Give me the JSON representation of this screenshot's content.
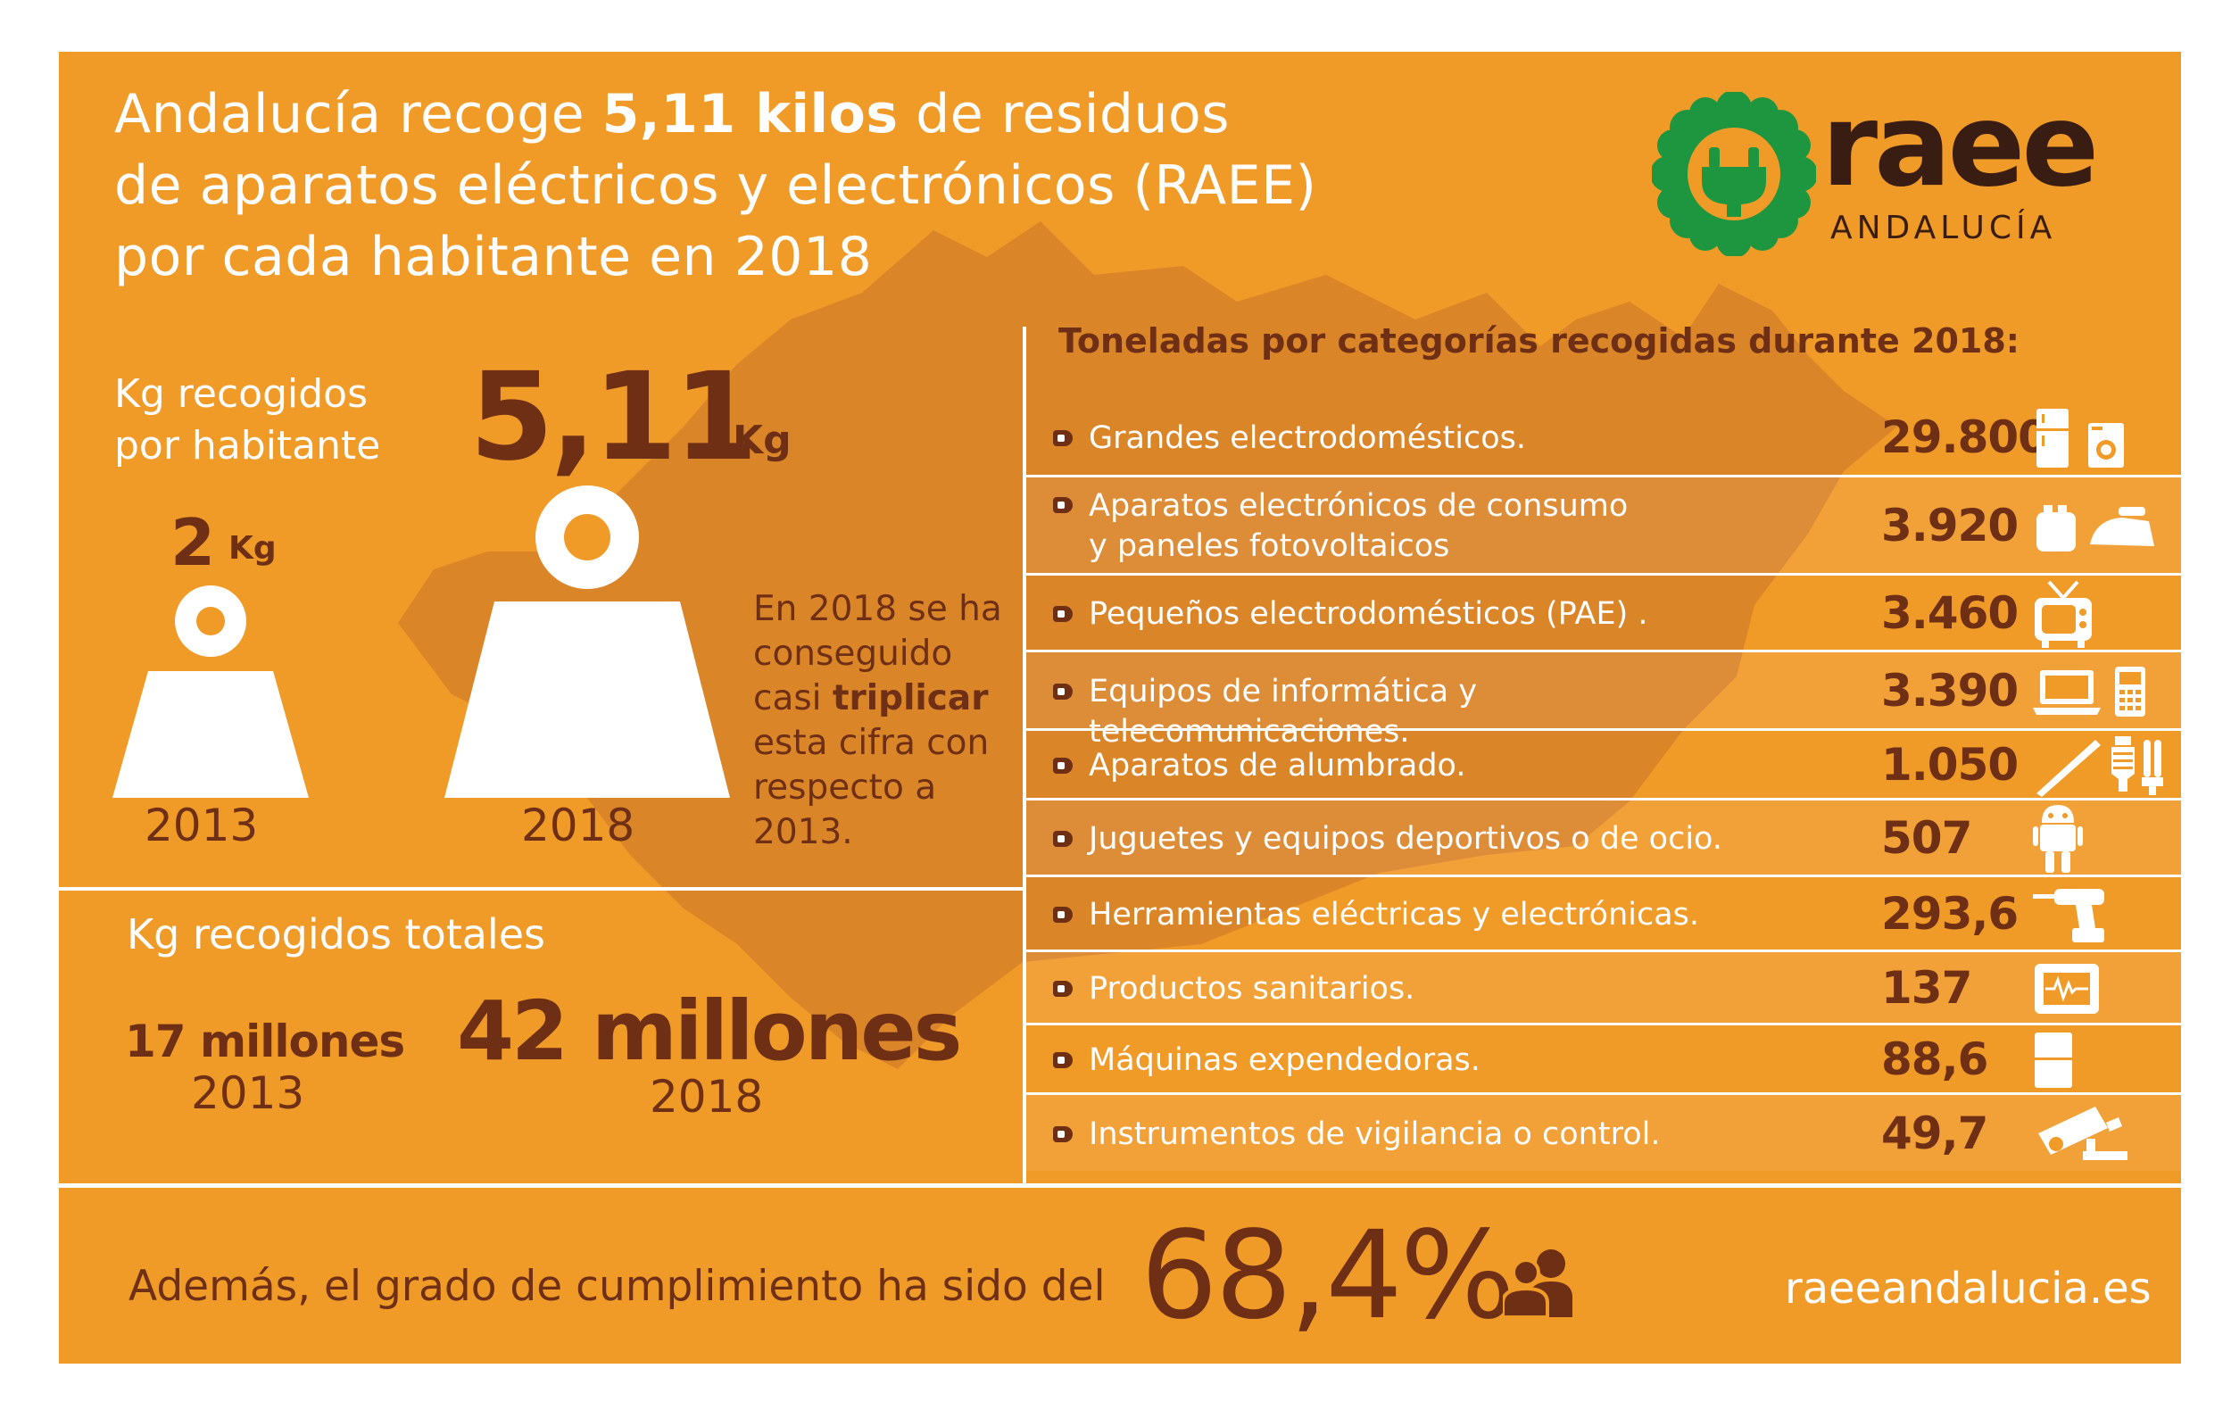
{
  "title": {
    "line1_pre": "Andalucía recoge ",
    "line1_bold": "5,11 kilos",
    "line1_post": " de residuos",
    "line2": "de aparatos eléctricos y electrónicos (RAEE)",
    "line3": "por cada habitante en 2018"
  },
  "logo": {
    "word": "raee",
    "sub": "ANDALUCÍA",
    "icon": "plug-gear-icon"
  },
  "per_capita": {
    "label": "Kg recogidos por habitante",
    "value_2018": "5,11",
    "unit_2018": "Kg",
    "value_2013": "2",
    "unit_2013": "Kg",
    "year_2013": "2013",
    "year_2018": "2018",
    "note_pre": "En 2018 se ha conseguido casi ",
    "note_bold": "triplicar",
    "note_post": " esta cifra con respecto a 2013."
  },
  "totals": {
    "label": "Kg recogidos totales",
    "value_2013": "17 millones",
    "year_2013": "2013",
    "value_2018": "42 millones",
    "year_2018": "2018"
  },
  "categories": {
    "header": "Toneladas por categorías recogidas durante 2018:",
    "rows": [
      {
        "label": "Grandes electrodomésticos.",
        "value": "29.800",
        "icon": "fridge-washer-icon"
      },
      {
        "label": "Aparatos electrónicos de consumo\ny paneles fotovoltaicos",
        "value": "3.920",
        "icon": "toaster-iron-icon"
      },
      {
        "label": "Pequeños electrodomésticos (PAE) .",
        "value": "3.460",
        "icon": "tv-icon"
      },
      {
        "label": "Equipos de informática y telecomunicaciones.",
        "value": "3.390",
        "icon": "laptop-phone-icon"
      },
      {
        "label": "Aparatos de alumbrado.",
        "value": "1.050",
        "icon": "lamps-icon"
      },
      {
        "label": "Juguetes y equipos deportivos o de ocio.",
        "value": "507",
        "icon": "robot-toy-icon"
      },
      {
        "label": "Herramientas eléctricas y electrónicas.",
        "value": "293,6",
        "icon": "drill-icon"
      },
      {
        "label": "Productos sanitarios.",
        "value": "137",
        "icon": "medical-monitor-icon"
      },
      {
        "label": "Máquinas expendedoras.",
        "value": "88,6",
        "icon": "vending-machine-icon"
      },
      {
        "label": "Instrumentos de vigilancia o control.",
        "value": "49,7",
        "icon": "security-camera-icon"
      }
    ]
  },
  "compliance": {
    "text": "Además, el grado de cumplimiento ha sido del",
    "value": "68,4%",
    "icon": "people-icon"
  },
  "site_url": "raeeandalucia.es",
  "colors": {
    "background": "#f09a28",
    "dark": "#6e2f14",
    "logo_green": "#1e9640",
    "logo_text": "#3a1d12",
    "map": "#d9822b"
  }
}
